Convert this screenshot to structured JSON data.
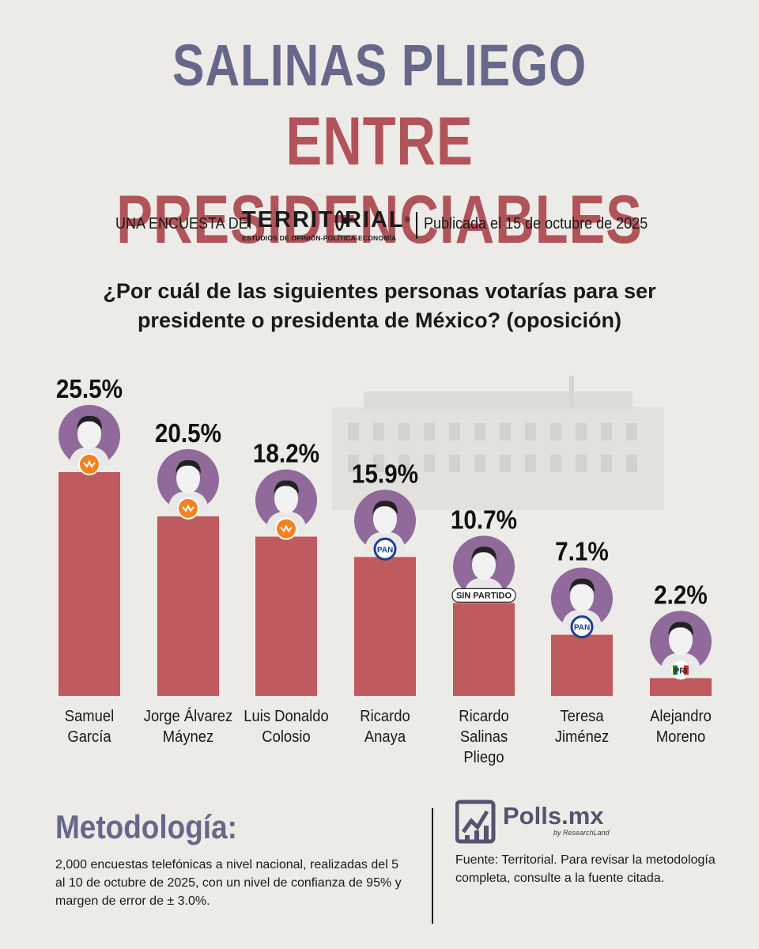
{
  "header": {
    "title_line1": "SALINAS PLIEGO",
    "title_line2": "ENTRE PRESIDENCIABLES",
    "survey_by_label": "UNA ENCUESTA DE:",
    "pollster_name_a": "TERRIT",
    "pollster_name_b": "RIAL",
    "pollster_tagline": "ESTUDIOS DE OPINIÓN-POLÍTICA-ECONOMÍA",
    "published": "Publicada el 15 de octubre de 2025"
  },
  "question": "¿Por cuál de las siguientes personas votarías para ser presidente o presidenta de México? (oposición)",
  "chart_data": {
    "type": "bar",
    "title": "¿Por cuál de las siguientes personas votarías para ser presidente o presidenta de México? (oposición)",
    "categories": [
      "Samuel García",
      "Jorge Álvarez Máynez",
      "Luis Donaldo Colosio",
      "Ricardo Anaya",
      "Ricardo Salinas Pliego",
      "Teresa Jiménez",
      "Alejandro Moreno"
    ],
    "values": [
      25.5,
      20.5,
      18.2,
      15.9,
      10.7,
      7.1,
      2.2
    ],
    "value_labels": [
      "25.5%",
      "20.5%",
      "18.2%",
      "15.9%",
      "10.7%",
      "7.1%",
      "2.2%"
    ],
    "name_lines": [
      [
        "Samuel",
        "García"
      ],
      [
        "Jorge Álvarez",
        "Máynez"
      ],
      [
        "Luis Donaldo",
        "Colosio"
      ],
      [
        "Ricardo",
        "Anaya"
      ],
      [
        "Ricardo Salinas",
        "Pliego"
      ],
      [
        "Teresa",
        "Jiménez"
      ],
      [
        "Alejandro",
        "Moreno"
      ]
    ],
    "parties": [
      "MC",
      "MC",
      "MC",
      "PAN",
      "SIN PARTIDO",
      "PAN",
      "PRI"
    ],
    "unit": "%",
    "xlabel": "",
    "ylabel": "",
    "ylim": [
      0,
      25.5
    ],
    "grid": false,
    "bar_color": "#bf5a5f",
    "avatar_color": "#8f6a9b"
  },
  "methodology": {
    "title": "Metodología:",
    "text": "2,000 encuestas telefónicas a nivel nacional, realizadas del 5 al 10 de octubre de 2025, con un nivel de confianza de 95% y margen de error de ± 3.0%."
  },
  "brand": {
    "name": "Polls.mx",
    "tagline": "by ResearchLand"
  },
  "source": "Fuente: Territorial. Para revisar la metodología completa, consulte a la fuente citada."
}
